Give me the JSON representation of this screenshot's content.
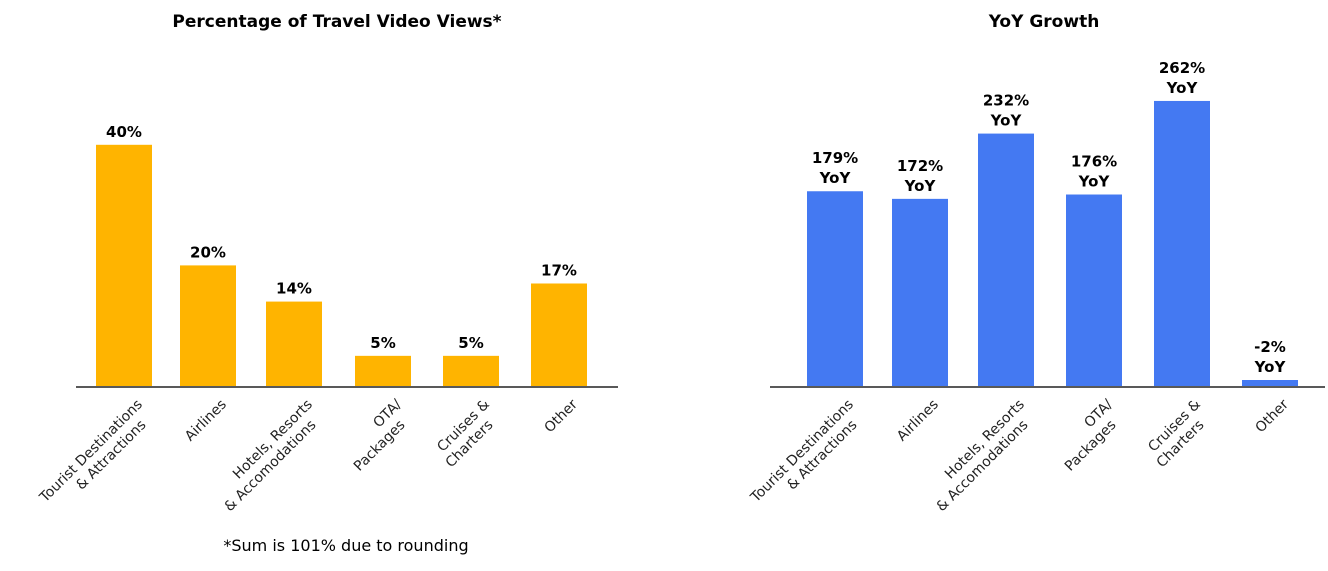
{
  "chart_data": [
    {
      "type": "bar",
      "title": "Percentage of Travel Video Views*",
      "categories": [
        [
          "Tourist Destinations",
          "& Attractions"
        ],
        [
          "Airlines"
        ],
        [
          "Hotels, Resorts",
          "& Accomodations"
        ],
        [
          "OTA/",
          "Packages"
        ],
        [
          "Cruises &",
          "Charters"
        ],
        [
          "Other"
        ]
      ],
      "values": [
        40,
        20,
        14,
        5,
        5,
        17
      ],
      "data_labels": [
        "40%",
        "20%",
        "14%",
        "5%",
        "5%",
        "17%"
      ],
      "unit": "%",
      "color": "#FFB400",
      "grid": false,
      "footnote": "*Sum is 101% due to rounding"
    },
    {
      "type": "bar",
      "title": "YoY Growth",
      "categories": [
        [
          "Tourist Destinations",
          "& Attractions"
        ],
        [
          "Airlines"
        ],
        [
          "Hotels, Resorts",
          "& Accomodations"
        ],
        [
          "OTA/",
          "Packages"
        ],
        [
          "Cruises &",
          "Charters"
        ],
        [
          "Other"
        ]
      ],
      "values": [
        179,
        172,
        232,
        176,
        262,
        -2
      ],
      "data_labels": [
        [
          "179%",
          "YoY"
        ],
        [
          "172%",
          "YoY"
        ],
        [
          "232%",
          "YoY"
        ],
        [
          "176%",
          "YoY"
        ],
        [
          "262%",
          "YoY"
        ],
        [
          "-2%",
          "YoY"
        ]
      ],
      "unit": "%",
      "color": "#4479F2",
      "grid": false
    }
  ]
}
